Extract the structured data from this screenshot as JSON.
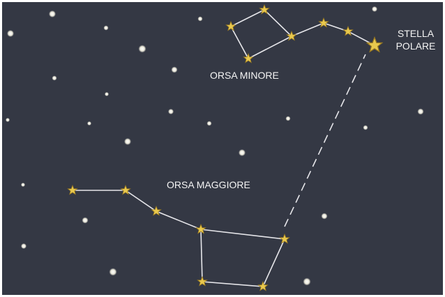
{
  "ursa_minor_label": "ORSA MINORE",
  "ursa_major_label": "ORSA MAGGIORE",
  "polaris_label": [
    "STELLA",
    "POLARE"
  ]
}
